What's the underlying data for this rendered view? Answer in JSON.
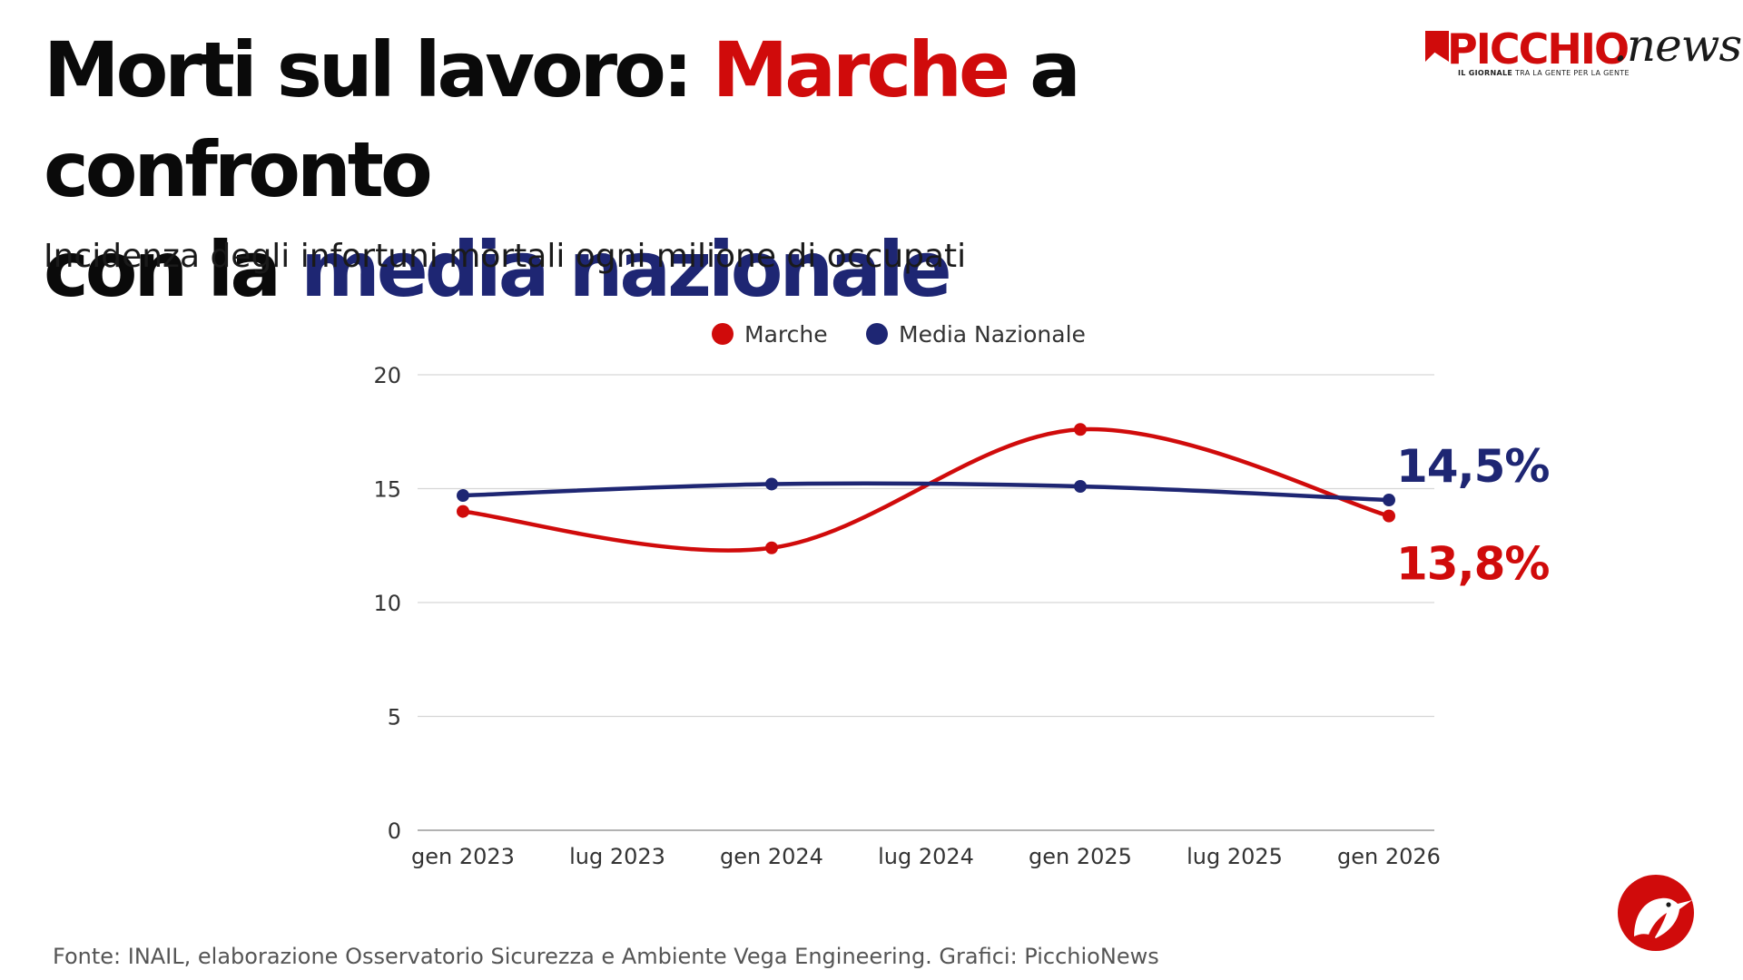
{
  "title": {
    "part1": "Morti sul lavoro: ",
    "part2": "Marche",
    "part3": " a confronto",
    "part4": "con la ",
    "part5": "media nazionale"
  },
  "subtitle": "Incidenza degli infortuni mortali ogni milione di occupati",
  "logo": {
    "brand": "PICCHIO",
    "suffix": ".news",
    "tagline_bold": "IL GIORNALE",
    "tagline_rest": " TRA LA GENTE PER LA GENTE"
  },
  "source": "Fonte: INAIL, elaborazione Osservatorio Sicurezza e Ambiente Vega Engineering. Grafici: PicchioNews",
  "chart_data": {
    "type": "line",
    "xlabel": "",
    "ylabel": "",
    "x_ticks": [
      "gen 2023",
      "lug 2023",
      "gen 2024",
      "lug 2024",
      "gen 2025",
      "lug 2025",
      "gen 2026"
    ],
    "ylim": [
      0,
      20
    ],
    "y_ticks": [
      0,
      5,
      10,
      15,
      20
    ],
    "grid": true,
    "legend_position": "top-center",
    "series": [
      {
        "name": "Marche",
        "color": "#d00b0b",
        "x": [
          "gen 2023",
          "gen 2024",
          "gen 2025",
          "gen 2026"
        ],
        "values": [
          14.0,
          12.4,
          17.6,
          13.8
        ],
        "end_label": "13,8%"
      },
      {
        "name": "Media Nazionale",
        "color": "#1e2673",
        "x": [
          "gen 2023",
          "gen 2024",
          "gen 2025",
          "gen 2026"
        ],
        "values": [
          14.7,
          15.2,
          15.1,
          14.5
        ],
        "end_label": "14,5%"
      }
    ]
  }
}
